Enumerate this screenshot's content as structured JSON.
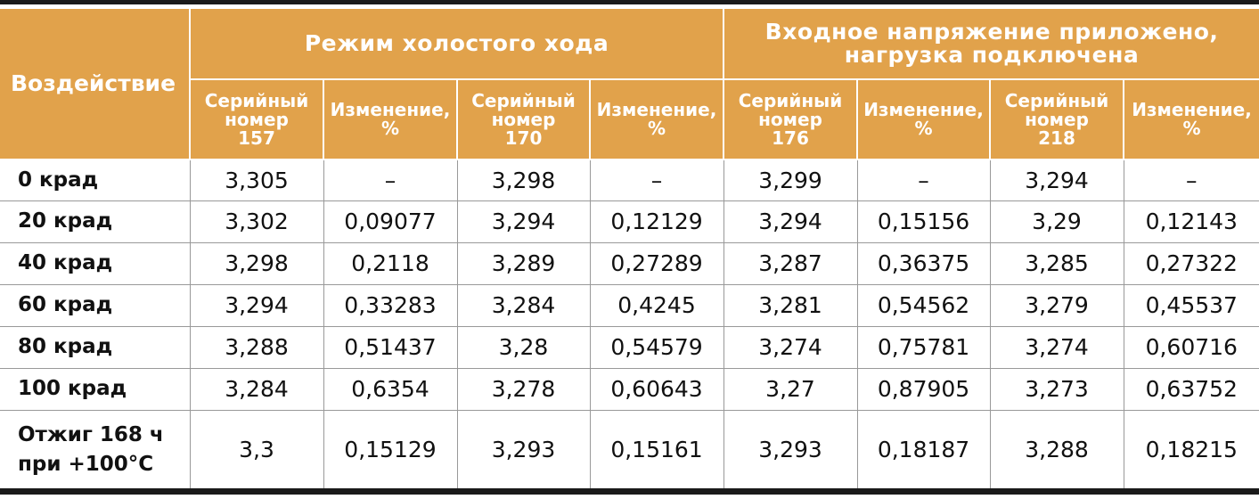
{
  "header": {
    "first": "Воздействие",
    "groups": [
      "Режим холостого хода",
      "Входное напряжение приложено,\nнагрузка подключена"
    ],
    "columns": [
      "Серийный\nномер\n157",
      "Изменение,\n%",
      "Серийный\nномер\n170",
      "Изменение,\n%",
      "Серийный\nномер\n176",
      "Изменение,\n%",
      "Серийный\nномер\n218",
      "Изменение,\n%"
    ]
  },
  "rows": [
    [
      "0 крад",
      "3,305",
      "–",
      "3,298",
      "–",
      "3,299",
      "–",
      "3,294",
      "–"
    ],
    [
      "20 крад",
      "3,302",
      "0,09077",
      "3,294",
      "0,12129",
      "3,294",
      "0,15156",
      "3,29",
      "0,12143"
    ],
    [
      "40 крад",
      "3,298",
      "0,2118",
      "3,289",
      "0,27289",
      "3,287",
      "0,36375",
      "3,285",
      "0,27322"
    ],
    [
      "60 крад",
      "3,294",
      "0,33283",
      "3,284",
      "0,4245",
      "3,281",
      "0,54562",
      "3,279",
      "0,45537"
    ],
    [
      "80 крад",
      "3,288",
      "0,51437",
      "3,28",
      "0,54579",
      "3,274",
      "0,75781",
      "3,274",
      "0,60716"
    ],
    [
      "100 крад",
      "3,284",
      "0,6354",
      "3,278",
      "0,60643",
      "3,27",
      "0,87905",
      "3,273",
      "0,63752"
    ],
    [
      "Отжиг 168 ч\nпри +100°C",
      "3,3",
      "0,15129",
      "3,293",
      "0,15161",
      "3,293",
      "0,18187",
      "3,288",
      "0,18215"
    ]
  ]
}
